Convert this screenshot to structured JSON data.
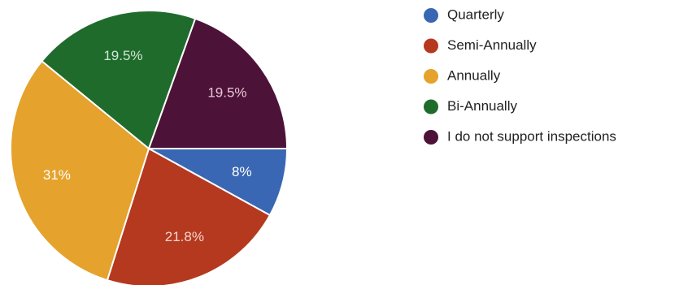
{
  "chart_data": {
    "type": "pie",
    "title": "",
    "slices": [
      {
        "label": "Quarterly",
        "value": 8,
        "display": "8%",
        "color": "#3a67b3",
        "label_color": "#ffffff"
      },
      {
        "label": "Semi-Annually",
        "value": 21.8,
        "display": "21.8%",
        "color": "#b5391f",
        "label_color": "#f3d7cf"
      },
      {
        "label": "Annually",
        "value": 31,
        "display": "31%",
        "color": "#e5a22c",
        "label_color": "#ffffff"
      },
      {
        "label": "Bi-Annually",
        "value": 19.5,
        "display": "19.5%",
        "color": "#1f6b2c",
        "label_color": "#cfe6d2"
      },
      {
        "label": "I do not support inspections",
        "value": 19.5,
        "display": "19.5%",
        "color": "#4d1238",
        "label_color": "#e3c9d8"
      }
    ],
    "start_angle_deg": 0,
    "direction": "clockwise",
    "legend": "right"
  }
}
